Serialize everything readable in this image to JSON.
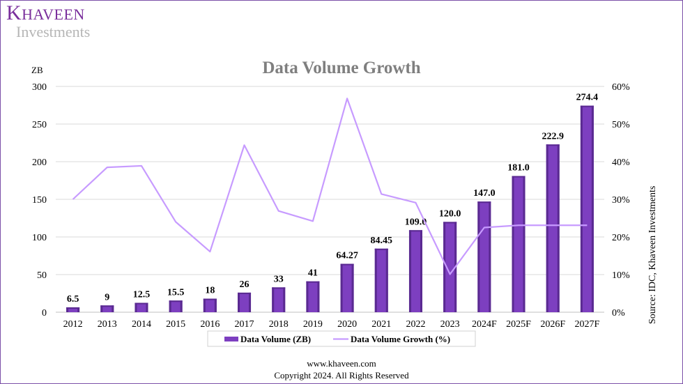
{
  "brand": {
    "name_first": "K",
    "name_rest": "HAVEEN",
    "sub": "Investments"
  },
  "footer": {
    "website": "www.khaveen.com",
    "copyright": "Copyright 2024. All Rights Reserved"
  },
  "source_note": "Source: IDC, Khaveen Investments",
  "colors": {
    "bar": "#7d3fc0",
    "bar_dark": "#5a2a91",
    "line": "#c79bff",
    "brand": "#7a2f9c"
  },
  "chart_data": {
    "type": "bar",
    "title": "Data Volume Growth",
    "ylabel": "ZB",
    "ylim": [
      0,
      300
    ],
    "y_ticks": [
      "0",
      "50",
      "100",
      "150",
      "200",
      "250",
      "300"
    ],
    "y2lim": [
      0,
      60
    ],
    "y2_ticks": [
      "0%",
      "10%",
      "20%",
      "30%",
      "40%",
      "50%",
      "60%"
    ],
    "categories": [
      "2012",
      "2013",
      "2014",
      "2015",
      "2016",
      "2017",
      "2018",
      "2019",
      "2020",
      "2021",
      "2022",
      "2023",
      "2024F",
      "2025F",
      "2026F",
      "2027F"
    ],
    "series": [
      {
        "name": "Data Volume (ZB)",
        "type": "bar",
        "axis": "left",
        "values": [
          6.5,
          9,
          12.5,
          15.5,
          18,
          26,
          33,
          41,
          64.27,
          84.45,
          109.0,
          120.0,
          147.0,
          181.0,
          222.9,
          274.4
        ],
        "labels": [
          "6.5",
          "9",
          "12.5",
          "15.5",
          "18",
          "26",
          "33",
          "41",
          "64.27",
          "84.45",
          "109.0",
          "120.0",
          "147.0",
          "181.0",
          "222.9",
          "274.4"
        ]
      },
      {
        "name": "Data Volume Growth (%)",
        "type": "line",
        "axis": "right",
        "values": [
          30,
          38.5,
          38.9,
          24,
          16.1,
          44.4,
          26.9,
          24.2,
          56.8,
          31.4,
          29.1,
          10.1,
          22.5,
          23.1,
          23.1,
          23.1
        ]
      }
    ],
    "legend": "bottom-center",
    "grid": true
  }
}
